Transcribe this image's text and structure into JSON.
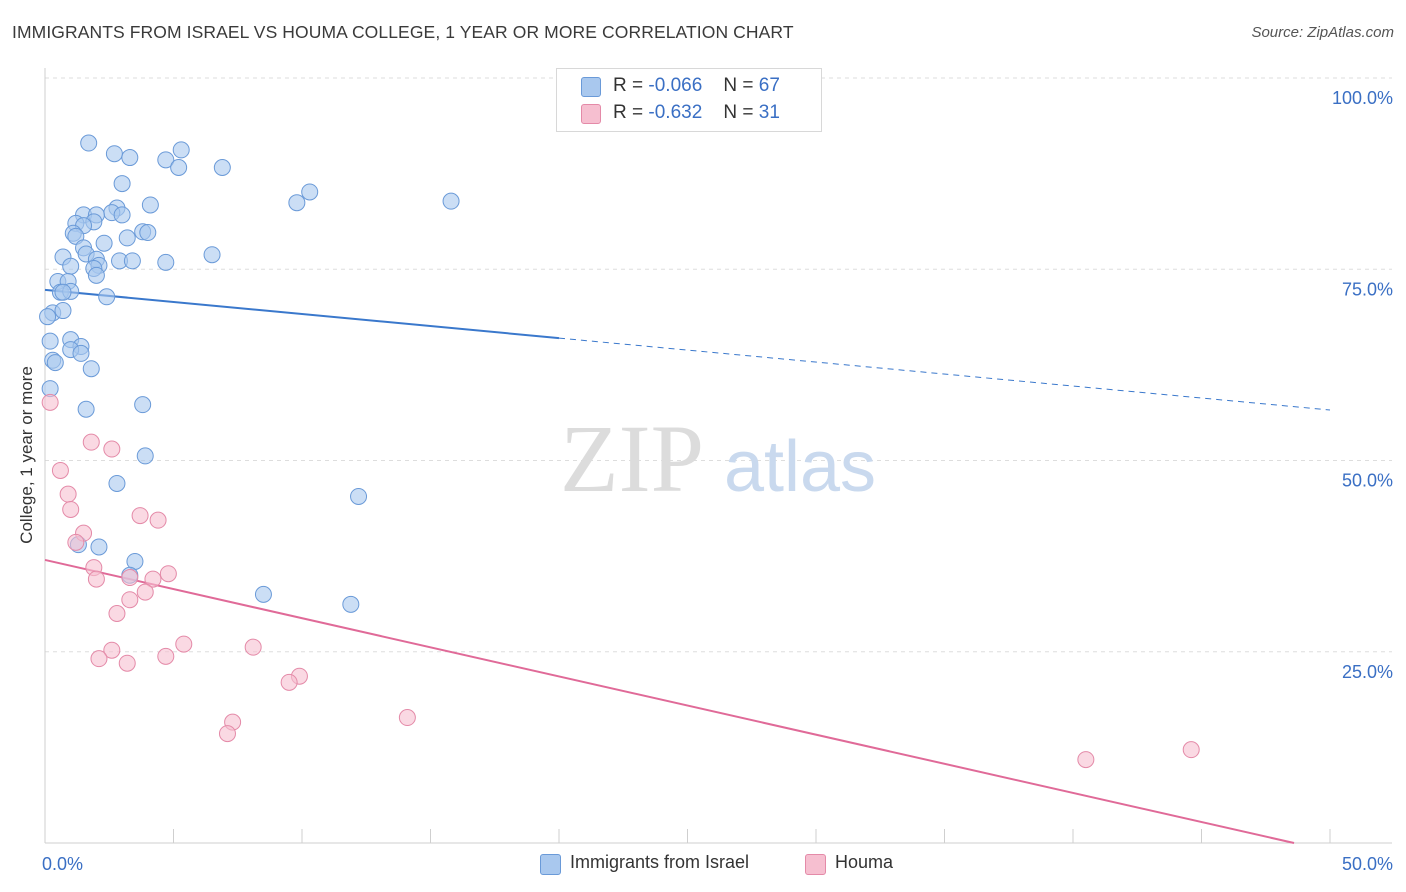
{
  "title": "IMMIGRANTS FROM ISRAEL VS HOUMA COLLEGE, 1 YEAR OR MORE CORRELATION CHART",
  "source": "Source: ZipAtlas.com",
  "watermark": {
    "zip": "ZIP",
    "atlas": "atlas"
  },
  "legend": {
    "rows": [
      {
        "r_label": "R =",
        "r_value": "-0.066",
        "n_label": "N =",
        "n_value": "67",
        "color": "#9fc3f0"
      },
      {
        "r_label": "R =",
        "r_value": "-0.632",
        "n_label": "N =",
        "n_value": "31",
        "color": "#f4b3c6"
      }
    ]
  },
  "bottom_legend": [
    "Immigrants from Israel",
    "Houma"
  ],
  "colors": {
    "blue_fill": "#a9c8ee",
    "blue_stroke": "#6a9ad8",
    "blue_line": "#3a78cc",
    "pink_fill": "#f6bfd0",
    "pink_stroke": "#e48aa8",
    "pink_line": "#e06a98",
    "axis_label": "#3a6fc4",
    "grid": "#dddddd"
  },
  "chart_data": {
    "type": "scatter",
    "title": "IMMIGRANTS FROM ISRAEL VS HOUMA COLLEGE, 1 YEAR OR MORE CORRELATION CHART",
    "xlabel": "",
    "ylabel": "College, 1 year or more",
    "xlim": [
      0,
      50
    ],
    "ylim": [
      0,
      100
    ],
    "x_tick_labels": [
      "0.0%",
      "50.0%"
    ],
    "y_tick_labels": [
      "100.0%",
      "75.0%",
      "50.0%",
      "25.0%"
    ],
    "y_ticks": [
      100,
      75,
      50,
      25
    ],
    "grid": true,
    "legend_placement": "top-center",
    "series": [
      {
        "name": "Immigrants from Israel",
        "points": [
          [
            1.7,
            91.5
          ],
          [
            2.7,
            90.1
          ],
          [
            3.3,
            89.6
          ],
          [
            4.7,
            89.3
          ],
          [
            5.3,
            90.6
          ],
          [
            5.2,
            88.3
          ],
          [
            6.9,
            88.3
          ],
          [
            3.0,
            86.2
          ],
          [
            10.3,
            85.1
          ],
          [
            9.8,
            83.7
          ],
          [
            15.8,
            83.9
          ],
          [
            4.1,
            83.4
          ],
          [
            2.8,
            83.0
          ],
          [
            2.6,
            82.4
          ],
          [
            3.0,
            82.1
          ],
          [
            1.5,
            82.1
          ],
          [
            2.0,
            82.1
          ],
          [
            1.2,
            81.0
          ],
          [
            1.9,
            81.2
          ],
          [
            1.5,
            80.7
          ],
          [
            3.8,
            79.9
          ],
          [
            4.0,
            79.8
          ],
          [
            1.1,
            79.7
          ],
          [
            1.2,
            79.3
          ],
          [
            3.2,
            79.1
          ],
          [
            2.3,
            78.4
          ],
          [
            1.5,
            77.8
          ],
          [
            1.6,
            77.0
          ],
          [
            0.7,
            76.6
          ],
          [
            2.0,
            76.3
          ],
          [
            2.9,
            76.1
          ],
          [
            3.4,
            76.1
          ],
          [
            4.7,
            75.9
          ],
          [
            6.5,
            76.9
          ],
          [
            2.1,
            75.5
          ],
          [
            1.0,
            75.4
          ],
          [
            1.9,
            75.1
          ],
          [
            2.0,
            74.2
          ],
          [
            0.5,
            73.4
          ],
          [
            0.9,
            73.4
          ],
          [
            0.6,
            72.0
          ],
          [
            1.0,
            72.1
          ],
          [
            0.7,
            72.0
          ],
          [
            2.4,
            71.4
          ],
          [
            0.3,
            69.3
          ],
          [
            0.7,
            69.6
          ],
          [
            0.1,
            68.8
          ],
          [
            0.2,
            65.6
          ],
          [
            1.0,
            65.8
          ],
          [
            1.4,
            64.9
          ],
          [
            1.0,
            64.5
          ],
          [
            1.4,
            64.0
          ],
          [
            0.3,
            63.1
          ],
          [
            0.4,
            62.8
          ],
          [
            1.8,
            62.0
          ],
          [
            0.2,
            59.4
          ],
          [
            3.8,
            57.3
          ],
          [
            1.6,
            56.7
          ],
          [
            3.9,
            50.6
          ],
          [
            2.8,
            47.0
          ],
          [
            12.2,
            45.3
          ],
          [
            2.1,
            38.7
          ],
          [
            1.3,
            39.0
          ],
          [
            3.5,
            36.8
          ],
          [
            3.3,
            35.0
          ],
          [
            8.5,
            32.5
          ],
          [
            11.9,
            31.2
          ]
        ]
      },
      {
        "name": "Houma",
        "points": [
          [
            0.2,
            57.6
          ],
          [
            0.6,
            48.7
          ],
          [
            1.8,
            52.4
          ],
          [
            2.6,
            51.5
          ],
          [
            0.9,
            45.6
          ],
          [
            1.0,
            43.6
          ],
          [
            3.7,
            42.8
          ],
          [
            4.4,
            42.2
          ],
          [
            1.5,
            40.5
          ],
          [
            1.2,
            39.3
          ],
          [
            1.9,
            36.0
          ],
          [
            2.0,
            34.5
          ],
          [
            4.8,
            35.2
          ],
          [
            3.3,
            34.7
          ],
          [
            4.2,
            34.5
          ],
          [
            3.9,
            32.8
          ],
          [
            3.3,
            31.8
          ],
          [
            2.8,
            30.0
          ],
          [
            5.4,
            26.0
          ],
          [
            8.1,
            25.6
          ],
          [
            2.6,
            25.2
          ],
          [
            2.1,
            24.1
          ],
          [
            4.7,
            24.4
          ],
          [
            3.2,
            23.5
          ],
          [
            9.9,
            21.8
          ],
          [
            9.5,
            21.0
          ],
          [
            14.1,
            16.4
          ],
          [
            7.3,
            15.8
          ],
          [
            7.1,
            14.3
          ],
          [
            40.5,
            10.9
          ],
          [
            44.6,
            12.2
          ]
        ]
      }
    ],
    "trend_lines": [
      {
        "series": "Immigrants from Israel",
        "x": [
          0,
          20,
          50
        ],
        "y": [
          72.3,
          66.0,
          56.6
        ],
        "dashed_from_x": 20
      },
      {
        "series": "Houma",
        "x": [
          0,
          48.6
        ],
        "y": [
          37.0,
          0.0
        ]
      }
    ]
  }
}
